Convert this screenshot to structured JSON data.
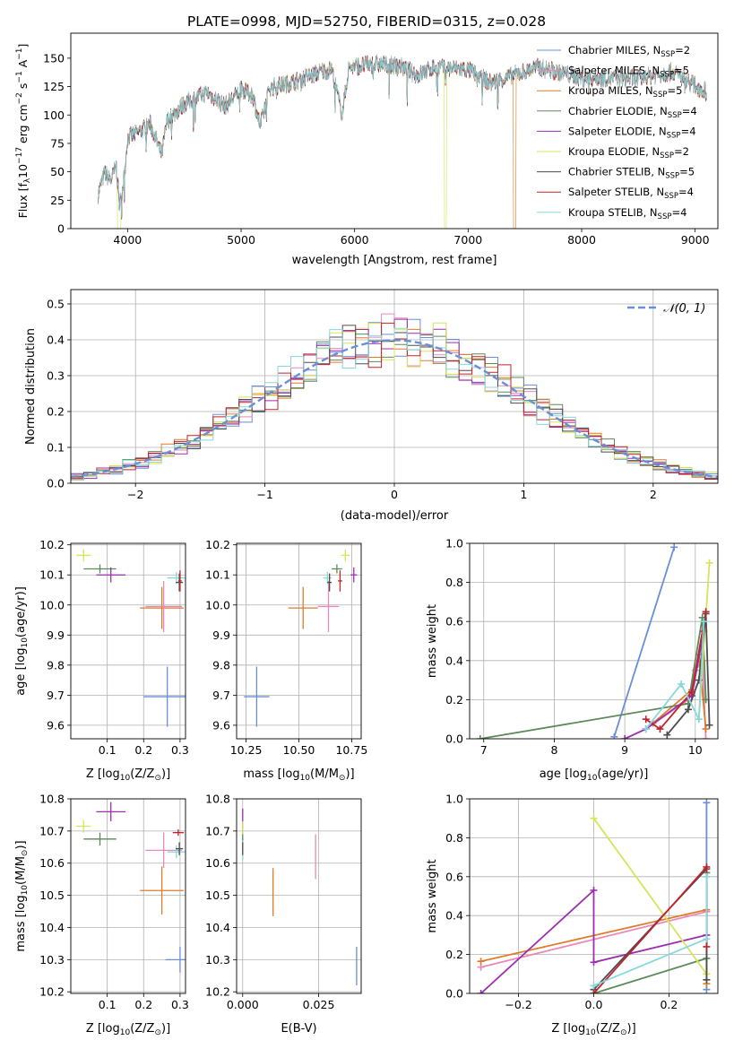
{
  "colors": {
    "Chabrier MILES": "#6a8fd6",
    "Salpeter MILES": "#e889b6",
    "Kroupa MILES": "#e07b2a",
    "Chabrier ELODIE": "#5c8a5a",
    "Salpeter ELODIE": "#9b2fae",
    "Kroupa ELODIE": "#d8e35a",
    "Chabrier STELIB": "#4d4d4d",
    "Salpeter STELIB": "#c0232c",
    "Kroupa STELIB": "#86d8dc",
    "normal": "#6a8fd6",
    "grid": "#b0b0b0"
  },
  "chart_data": [
    {
      "type": "line",
      "title": "PLATE=0998, MJD=52750, FIBERID=0315, z=0.028",
      "xlabel": "wavelength [Angstrom, rest frame]",
      "ylabel": "Flux [f",
      "ylabel_parts": {
        "a": "Flux [f",
        "sub": "λ",
        "b": "10",
        "sup1": "−17",
        "c": " erg cm",
        "sup2": "−2",
        "d": " s",
        "sup3": "−1",
        "e": " A",
        "sup4": "−1",
        "f": "]"
      },
      "xlim": [
        3500,
        9200
      ],
      "ylim": [
        0,
        172
      ],
      "xticks": [
        4000,
        5000,
        6000,
        7000,
        8000,
        9000
      ],
      "yticks": [
        0,
        25,
        50,
        75,
        100,
        125,
        150
      ],
      "legend_position": "top-right",
      "legend": [
        {
          "name": "Chabrier MILES, N",
          "sub": "SSP",
          "eq": "=2"
        },
        {
          "name": "Salpeter MILES, N",
          "sub": "SSP",
          "eq": "=5"
        },
        {
          "name": "Kroupa MILES, N",
          "sub": "SSP",
          "eq": "=5"
        },
        {
          "name": "Chabrier ELODIE, N",
          "sub": "SSP",
          "eq": "=4"
        },
        {
          "name": "Salpeter ELODIE, N",
          "sub": "SSP",
          "eq": "=4"
        },
        {
          "name": "Kroupa ELODIE, N",
          "sub": "SSP",
          "eq": "=2"
        },
        {
          "name": "Chabrier STELIB, N",
          "sub": "SSP",
          "eq": "=5"
        },
        {
          "name": "Salpeter STELIB, N",
          "sub": "SSP",
          "eq": "=4"
        },
        {
          "name": "Kroupa STELIB, N",
          "sub": "SSP",
          "eq": "=4"
        }
      ],
      "spectrum_anchor_points": [
        [
          3740,
          30
        ],
        [
          3800,
          50
        ],
        [
          3850,
          42
        ],
        [
          3900,
          55
        ],
        [
          3930,
          20
        ],
        [
          3970,
          45
        ],
        [
          4000,
          80
        ],
        [
          4100,
          85
        ],
        [
          4200,
          92
        ],
        [
          4300,
          65
        ],
        [
          4350,
          95
        ],
        [
          4500,
          110
        ],
        [
          4700,
          120
        ],
        [
          4860,
          108
        ],
        [
          5000,
          122
        ],
        [
          5100,
          118
        ],
        [
          5170,
          90
        ],
        [
          5250,
          124
        ],
        [
          5500,
          130
        ],
        [
          5700,
          138
        ],
        [
          5800,
          140
        ],
        [
          5890,
          100
        ],
        [
          5950,
          142
        ],
        [
          6200,
          145
        ],
        [
          6400,
          143
        ],
        [
          6560,
          135
        ],
        [
          6700,
          142
        ],
        [
          7000,
          140
        ],
        [
          7200,
          128
        ],
        [
          7400,
          135
        ],
        [
          7600,
          142
        ],
        [
          8000,
          133
        ],
        [
          8500,
          132
        ],
        [
          8800,
          138
        ],
        [
          9100,
          120
        ]
      ],
      "features": [
        {
          "series": "Kroupa ELODIE",
          "wavelength_start": 3910,
          "wavelength_end": 3940,
          "flux": 0
        },
        {
          "series": "Kroupa ELODIE",
          "wavelength_start": 6790,
          "wavelength_end": 6810,
          "flux": 0
        },
        {
          "series": "Kroupa MILES",
          "wavelength_start": 7400,
          "wavelength_end": 7420,
          "flux": 0
        }
      ]
    },
    {
      "type": "histogram",
      "xlabel": "(data-model)/error",
      "ylabel": "Normed distribution",
      "xlim": [
        -2.5,
        2.5
      ],
      "ylim": [
        0,
        0.54
      ],
      "xticks": [
        -2,
        -1,
        0,
        1,
        2
      ],
      "yticks": [
        0,
        0.1,
        0.2,
        0.3,
        0.4,
        0.5
      ],
      "bin_width": 0.1,
      "legend": "𝒩(0, 1)",
      "legend_position": "top-right",
      "model": "standard normal pdf"
    },
    {
      "type": "scatter",
      "xlabel": "Z [log",
      "xlabel_parts": {
        "a": "Z [log",
        "sub": "10",
        "b": "(Z/Z",
        "sub2": "⊙",
        "c": ")]"
      },
      "ylabel": "age  [log",
      "ylabel_parts": {
        "a": "age  [log",
        "sub": "10",
        "b": "(age/yr)]"
      },
      "xlim": [
        0.0,
        0.315
      ],
      "ylim": [
        9.555,
        10.205
      ],
      "xticks": [
        0.1,
        0.2,
        0.3
      ],
      "yticks": [
        9.6,
        9.7,
        9.8,
        9.9,
        10.0,
        10.1,
        10.2
      ],
      "points": [
        {
          "series": "Kroupa ELODIE",
          "x": 0.035,
          "y": 10.165,
          "xerr": 0.02,
          "yerr": 0.02
        },
        {
          "series": "Chabrier ELODIE",
          "x": 0.08,
          "y": 10.12,
          "xerr": 0.045,
          "yerr": 0.015
        },
        {
          "series": "Salpeter ELODIE",
          "x": 0.11,
          "y": 10.1,
          "xerr": 0.04,
          "yerr": 0.025
        },
        {
          "series": "Kroupa MILES",
          "x": 0.25,
          "y": 9.99,
          "xerr": 0.06,
          "yerr": 0.07
        },
        {
          "series": "Salpeter MILES",
          "x": 0.255,
          "y": 9.995,
          "xerr": 0.05,
          "yerr": 0.085
        },
        {
          "series": "Kroupa STELIB",
          "x": 0.29,
          "y": 10.09,
          "xerr": 0.025,
          "yerr": 0.02
        },
        {
          "series": "Chabrier STELIB",
          "x": 0.298,
          "y": 10.075,
          "xerr": 0.01,
          "yerr": 0.03
        },
        {
          "series": "Salpeter STELIB",
          "x": 0.3,
          "y": 10.08,
          "xerr": 0.005,
          "yerr": 0.035
        },
        {
          "series": "Chabrier MILES",
          "x": 0.265,
          "y": 9.695,
          "xerr": 0.065,
          "yerr": 0.1
        }
      ]
    },
    {
      "type": "scatter",
      "xlabel": "mass [log",
      "xlabel_parts": {
        "a": "mass [log",
        "sub": "10",
        "b": "(M/M",
        "sub2": "⊙",
        "c": ")]"
      },
      "ylabel": "",
      "xlim": [
        10.205,
        10.795
      ],
      "ylim": [
        9.555,
        10.205
      ],
      "xticks": [
        10.25,
        10.5,
        10.75
      ],
      "yticks": [
        9.6,
        9.7,
        9.8,
        9.9,
        10.0,
        10.1,
        10.2
      ],
      "points": [
        {
          "series": "Kroupa ELODIE",
          "x": 10.72,
          "y": 10.165,
          "xerr": 0.02,
          "yerr": 0.02
        },
        {
          "series": "Chabrier ELODIE",
          "x": 10.68,
          "y": 10.12,
          "xerr": 0.025,
          "yerr": 0.015
        },
        {
          "series": "Salpeter ELODIE",
          "x": 10.76,
          "y": 10.1,
          "xerr": 0.015,
          "yerr": 0.025
        },
        {
          "series": "Kroupa MILES",
          "x": 10.52,
          "y": 9.99,
          "xerr": 0.07,
          "yerr": 0.07
        },
        {
          "series": "Salpeter MILES",
          "x": 10.64,
          "y": 9.995,
          "xerr": 0.05,
          "yerr": 0.085
        },
        {
          "series": "Kroupa STELIB",
          "x": 10.635,
          "y": 10.09,
          "xerr": 0.02,
          "yerr": 0.02
        },
        {
          "series": "Chabrier STELIB",
          "x": 10.645,
          "y": 10.075,
          "xerr": 0.01,
          "yerr": 0.03
        },
        {
          "series": "Salpeter STELIB",
          "x": 10.695,
          "y": 10.08,
          "xerr": 0.01,
          "yerr": 0.035
        },
        {
          "series": "Chabrier MILES",
          "x": 10.3,
          "y": 9.695,
          "xerr": 0.06,
          "yerr": 0.1
        }
      ]
    },
    {
      "type": "line",
      "xlabel": "age  [log",
      "xlabel_parts": {
        "a": "age  [log",
        "sub": "10",
        "b": "(age/yr)]"
      },
      "ylabel": "mass weight",
      "xlim": [
        6.8,
        10.32
      ],
      "ylim": [
        0,
        1.0
      ],
      "xticks": [
        7,
        8,
        9,
        10
      ],
      "yticks": [
        0.0,
        0.2,
        0.4,
        0.6,
        0.8,
        1.0
      ],
      "series": [
        {
          "name": "Chabrier MILES",
          "points": [
            [
              8.85,
              0.01
            ],
            [
              9.7,
              0.98
            ]
          ]
        },
        {
          "name": "Salpeter MILES",
          "points": [
            [
              9.3,
              0.05
            ],
            [
              9.9,
              0.2
            ],
            [
              10.0,
              0.35
            ],
            [
              10.1,
              0.4
            ],
            [
              10.15,
              0.0
            ]
          ]
        },
        {
          "name": "Kroupa MILES",
          "points": [
            [
              9.4,
              0.08
            ],
            [
              9.95,
              0.25
            ],
            [
              10.05,
              0.43
            ],
            [
              10.15,
              0.05
            ]
          ]
        },
        {
          "name": "Chabrier ELODIE",
          "points": [
            [
              6.95,
              0.0
            ],
            [
              9.9,
              0.18
            ],
            [
              10.1,
              0.62
            ],
            [
              10.15,
              0.2
            ]
          ]
        },
        {
          "name": "Salpeter ELODIE",
          "points": [
            [
              9.0,
              0.0
            ],
            [
              9.3,
              0.05
            ],
            [
              9.95,
              0.22
            ],
            [
              10.12,
              0.55
            ]
          ]
        },
        {
          "name": "Kroupa ELODIE",
          "points": [
            [
              10.05,
              0.1
            ],
            [
              10.2,
              0.9
            ]
          ]
        },
        {
          "name": "Chabrier STELIB",
          "points": [
            [
              9.6,
              0.02
            ],
            [
              9.9,
              0.15
            ],
            [
              10.05,
              0.3
            ],
            [
              10.15,
              0.64
            ],
            [
              10.2,
              0.07
            ]
          ]
        },
        {
          "name": "Salpeter STELIB",
          "points": [
            [
              9.3,
              0.1
            ],
            [
              9.5,
              0.05
            ],
            [
              9.95,
              0.24
            ],
            [
              10.15,
              0.65
            ]
          ]
        },
        {
          "name": "Kroupa STELIB",
          "points": [
            [
              9.3,
              0.05
            ],
            [
              9.8,
              0.28
            ],
            [
              10.05,
              0.1
            ],
            [
              10.12,
              0.6
            ]
          ]
        }
      ]
    },
    {
      "type": "scatter",
      "xlabel": "Z [log",
      "xlabel_parts": {
        "a": "Z [log",
        "sub": "10",
        "b": "(Z/Z",
        "sub2": "⊙",
        "c": ")]"
      },
      "ylabel": "mass [log",
      "ylabel_parts": {
        "a": "mass [log",
        "sub": "10",
        "b": "(M/M",
        "sub2": "⊙",
        "c": ")]"
      },
      "xlim": [
        0.0,
        0.315
      ],
      "ylim": [
        10.195,
        10.8
      ],
      "xticks": [
        0.1,
        0.2,
        0.3
      ],
      "yticks": [
        10.2,
        10.3,
        10.4,
        10.5,
        10.6,
        10.7,
        10.8
      ],
      "points": [
        {
          "series": "Kroupa ELODIE",
          "x": 0.035,
          "y": 10.715,
          "xerr": 0.02,
          "yerr": 0.02
        },
        {
          "series": "Chabrier ELODIE",
          "x": 0.08,
          "y": 10.675,
          "xerr": 0.045,
          "yerr": 0.02
        },
        {
          "series": "Salpeter ELODIE",
          "x": 0.11,
          "y": 10.76,
          "xerr": 0.04,
          "yerr": 0.03
        },
        {
          "series": "Kroupa MILES",
          "x": 0.25,
          "y": 10.515,
          "xerr": 0.06,
          "yerr": 0.075
        },
        {
          "series": "Salpeter MILES",
          "x": 0.255,
          "y": 10.64,
          "xerr": 0.05,
          "yerr": 0.055
        },
        {
          "series": "Kroupa STELIB",
          "x": 0.29,
          "y": 10.635,
          "xerr": 0.025,
          "yerr": 0.02
        },
        {
          "series": "Chabrier STELIB",
          "x": 0.298,
          "y": 10.645,
          "xerr": 0.01,
          "yerr": 0.02
        },
        {
          "series": "Salpeter STELIB",
          "x": 0.295,
          "y": 10.695,
          "xerr": 0.015,
          "yerr": 0.01
        },
        {
          "series": "Chabrier MILES",
          "x": 0.3,
          "y": 10.3,
          "xerr": 0.04,
          "yerr": 0.04
        }
      ]
    },
    {
      "type": "scatter",
      "xlabel": "E(B-V)",
      "ylabel": "",
      "xlim": [
        -0.002,
        0.039
      ],
      "ylim": [
        10.195,
        10.8
      ],
      "xticks": [
        0.0,
        0.025
      ],
      "xticklabels": [
        "0.000",
        "0.025"
      ],
      "yticks": [
        10.2,
        10.3,
        10.4,
        10.5,
        10.6,
        10.7,
        10.8
      ],
      "points": [
        {
          "series": "Salpeter ELODIE",
          "x": 0.0,
          "y": 10.74,
          "xerr": 0,
          "yerr": 0.03
        },
        {
          "series": "Chabrier ELODIE",
          "x": 0.0,
          "y": 10.68,
          "xerr": 0,
          "yerr": 0.03
        },
        {
          "series": "Kroupa ELODIE",
          "x": 0.0,
          "y": 10.71,
          "xerr": 0,
          "yerr": 0.02
        },
        {
          "series": "Kroupa STELIB",
          "x": 0.0,
          "y": 10.64,
          "xerr": 0,
          "yerr": 0.03
        },
        {
          "series": "Chabrier STELIB",
          "x": 0.0,
          "y": 10.645,
          "xerr": 0,
          "yerr": 0.02
        },
        {
          "series": "Kroupa MILES",
          "x": 0.01,
          "y": 10.51,
          "xerr": 0,
          "yerr": 0.075
        },
        {
          "series": "Salpeter MILES",
          "x": 0.024,
          "y": 10.62,
          "xerr": 0,
          "yerr": 0.07
        },
        {
          "series": "Chabrier MILES",
          "x": 0.0375,
          "y": 10.28,
          "xerr": 0,
          "yerr": 0.06
        }
      ]
    },
    {
      "type": "line",
      "xlabel": "Z [log",
      "xlabel_parts": {
        "a": "Z [log",
        "sub": "10",
        "b": "(Z/Z",
        "sub2": "⊙",
        "c": ")]"
      },
      "ylabel": "mass weight",
      "xlim": [
        -0.33,
        0.33
      ],
      "ylim": [
        0,
        1.0
      ],
      "xticks": [
        -0.2,
        0.0,
        0.2
      ],
      "xticklabels": [
        "−0.2",
        "0.0",
        "0.2"
      ],
      "yticks": [
        0.0,
        0.2,
        0.4,
        0.6,
        0.8,
        1.0
      ],
      "series": [
        {
          "name": "Chabrier MILES",
          "points": [
            [
              0.3,
              0.02
            ],
            [
              0.3,
              0.98
            ]
          ]
        },
        {
          "name": "Salpeter MILES",
          "points": [
            [
              -0.3,
              0.135
            ],
            [
              0.3,
              0.42
            ],
            [
              0.3,
              0.1
            ]
          ]
        },
        {
          "name": "Kroupa MILES",
          "points": [
            [
              -0.3,
              0.165
            ],
            [
              0.3,
              0.43
            ],
            [
              0.3,
              0.05
            ]
          ]
        },
        {
          "name": "Chabrier ELODIE",
          "points": [
            [
              0.0,
              0.0
            ],
            [
              0.3,
              0.18
            ],
            [
              0.3,
              0.62
            ]
          ]
        },
        {
          "name": "Salpeter ELODIE",
          "points": [
            [
              -0.3,
              0.0
            ],
            [
              0.0,
              0.53
            ],
            [
              0.0,
              0.16
            ],
            [
              0.3,
              0.3
            ]
          ]
        },
        {
          "name": "Kroupa ELODIE",
          "points": [
            [
              0.0,
              0.9
            ],
            [
              0.3,
              0.1
            ]
          ]
        },
        {
          "name": "Chabrier STELIB",
          "points": [
            [
              0.0,
              0.02
            ],
            [
              0.3,
              0.64
            ],
            [
              0.3,
              0.07
            ]
          ]
        },
        {
          "name": "Salpeter STELIB",
          "points": [
            [
              0.0,
              0.0
            ],
            [
              0.3,
              0.65
            ],
            [
              0.3,
              0.24
            ]
          ]
        },
        {
          "name": "Kroupa STELIB",
          "points": [
            [
              0.0,
              0.04
            ],
            [
              0.3,
              0.28
            ],
            [
              0.3,
              0.6
            ]
          ]
        }
      ]
    }
  ]
}
